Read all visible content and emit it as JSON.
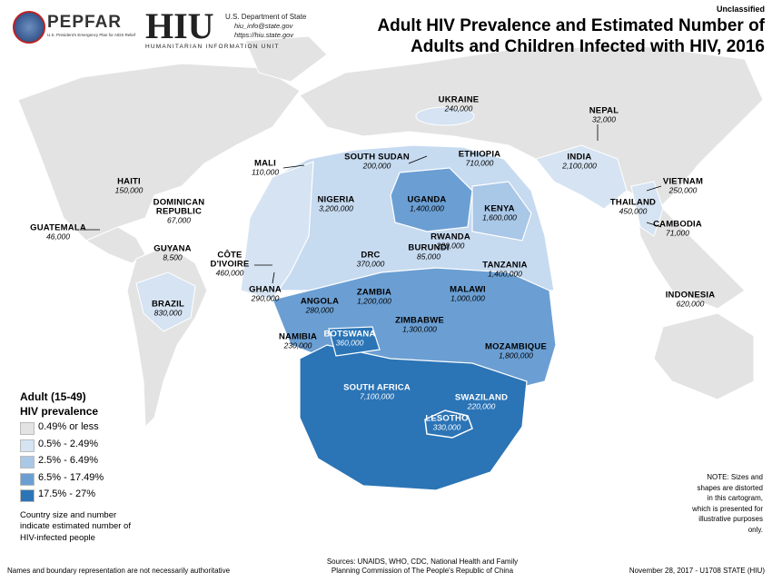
{
  "header": {
    "pepfar": "PEPFAR",
    "pepfar_sub": "U.S. President's Emergency Plan for AIDS Relief",
    "hiu": "HIU",
    "hiu_sub": "HUMANITARIAN INFORMATION UNIT",
    "dept": "U.S. Department of State",
    "email": "hiu_info@state.gov",
    "web": "https://hiu.state.gov",
    "classification": "Unclassified",
    "title_line1": "Adult HIV Prevalence and Estimated Number of",
    "title_line2": "Adults and Children Infected with HIV, 2016"
  },
  "countries": [
    {
      "name": "UKRAINE",
      "value": "240,000"
    },
    {
      "name": "NEPAL",
      "value": "32,000"
    },
    {
      "name": "INDIA",
      "value": "2,100,000"
    },
    {
      "name": "SOUTH SUDAN",
      "value": "200,000"
    },
    {
      "name": "ETHIOPIA",
      "value": "710,000"
    },
    {
      "name": "MALI",
      "value": "110,000"
    },
    {
      "name": "HAITI",
      "value": "150,000"
    },
    {
      "name": "DOMINICAN REPUBLIC",
      "value": "67,000"
    },
    {
      "name": "NIGERIA",
      "value": "3,200,000"
    },
    {
      "name": "UGANDA",
      "value": "1,400,000"
    },
    {
      "name": "KENYA",
      "value": "1,600,000"
    },
    {
      "name": "VIETNAM",
      "value": "250,000"
    },
    {
      "name": "THAILAND",
      "value": "450,000"
    },
    {
      "name": "GUATEMALA",
      "value": "46,000"
    },
    {
      "name": "CAMBODIA",
      "value": "71,000"
    },
    {
      "name": "RWANDA",
      "value": "220,000"
    },
    {
      "name": "BURUNDI",
      "value": "85,000"
    },
    {
      "name": "GUYANA",
      "value": "8,500"
    },
    {
      "name": "CÔTE D'IVOIRE",
      "value": "460,000"
    },
    {
      "name": "DRC",
      "value": "370,000"
    },
    {
      "name": "TANZANIA",
      "value": "1,400,000"
    },
    {
      "name": "GHANA",
      "value": "290,000"
    },
    {
      "name": "ZAMBIA",
      "value": "1,200,000"
    },
    {
      "name": "MALAWI",
      "value": "1,000,000"
    },
    {
      "name": "BRAZIL",
      "value": "830,000"
    },
    {
      "name": "INDONESIA",
      "value": "620,000"
    },
    {
      "name": "ANGOLA",
      "value": "280,000"
    },
    {
      "name": "ZIMBABWE",
      "value": "1,300,000"
    },
    {
      "name": "NAMIBIA",
      "value": "230,000"
    },
    {
      "name": "BOTSWANA",
      "value": "360,000"
    },
    {
      "name": "MOZAMBIQUE",
      "value": "1,800,000"
    },
    {
      "name": "SOUTH AFRICA",
      "value": "7,100,000"
    },
    {
      "name": "SWAZILAND",
      "value": "220,000"
    },
    {
      "name": "LESOTHO",
      "value": "330,000"
    }
  ],
  "legend": {
    "title_line1": "Adult (15-49)",
    "title_line2": "HIV prevalence",
    "items": [
      {
        "label": "0.49% or less",
        "color": "#e3e3e3"
      },
      {
        "label": "0.5% - 2.49%",
        "color": "#d5e3f2"
      },
      {
        "label": "2.5% - 6.49%",
        "color": "#a9c7e7"
      },
      {
        "label": "6.5% - 17.49%",
        "color": "#6b9fd3"
      },
      {
        "label": "17.5% - 27%",
        "color": "#2b74b6"
      }
    ],
    "size_note": "Country size and number indicate estimated number of HIV-infected people"
  },
  "note": "NOTE: Sizes and shapes are distorted in this cartogram, which is presented for illustrative purposes only.",
  "footer": {
    "disclaimer": "Names and boundary representation are not necessarily authoritative",
    "sources": "Sources: UNAIDS, WHO, CDC, National Health and Family Planning Commission of The People's Republic of China",
    "date": "November 28, 2017 - U1708 STATE (HIU)"
  }
}
